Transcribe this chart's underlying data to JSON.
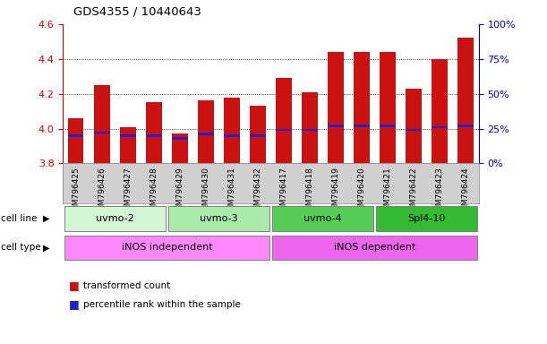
{
  "title": "GDS4355 / 10440643",
  "samples": [
    "GSM796425",
    "GSM796426",
    "GSM796427",
    "GSM796428",
    "GSM796429",
    "GSM796430",
    "GSM796431",
    "GSM796432",
    "GSM796417",
    "GSM796418",
    "GSM796419",
    "GSM796420",
    "GSM796421",
    "GSM796422",
    "GSM796423",
    "GSM796424"
  ],
  "transformed_counts": [
    4.06,
    4.25,
    4.01,
    4.15,
    3.97,
    4.16,
    4.18,
    4.13,
    4.29,
    4.21,
    4.44,
    4.44,
    4.44,
    4.23,
    4.4,
    4.52
  ],
  "percentile_ranks_pct": [
    20,
    22,
    20,
    20,
    18,
    21,
    20,
    20,
    24,
    24,
    27,
    27,
    27,
    24,
    26,
    27
  ],
  "bar_bottom": 3.8,
  "ylim": [
    3.8,
    4.6
  ],
  "yticks_left": [
    3.8,
    4.0,
    4.2,
    4.4,
    4.6
  ],
  "yticks_right_pct": [
    0,
    25,
    50,
    75,
    100
  ],
  "cell_line_groups": [
    {
      "label": "uvmo-2",
      "start": 0,
      "end": 4,
      "color": "#d4f5d4"
    },
    {
      "label": "uvmo-3",
      "start": 4,
      "end": 8,
      "color": "#aaeaaa"
    },
    {
      "label": "uvmo-4",
      "start": 8,
      "end": 12,
      "color": "#55cc55"
    },
    {
      "label": "Spl4-10",
      "start": 12,
      "end": 16,
      "color": "#33bb33"
    }
  ],
  "cell_type_groups": [
    {
      "label": "iNOS independent",
      "start": 0,
      "end": 8,
      "color": "#ff88ff"
    },
    {
      "label": "iNOS dependent",
      "start": 8,
      "end": 16,
      "color": "#ee66ee"
    }
  ],
  "bar_color": "#cc1111",
  "percentile_color": "#2222cc",
  "left_tick_color": "#cc0000",
  "right_tick_color": "#0000cc",
  "xlabel_bg_color": "#d0d0d0"
}
